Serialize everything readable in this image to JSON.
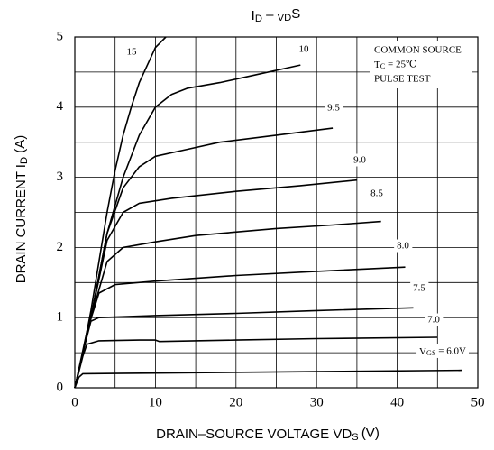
{
  "chart_data": {
    "type": "line",
    "title": "ID – VDS",
    "x_label": "DRAIN–SOURCE VOLTAGE  VDS  (V)",
    "y_label": "DRAIN CURRENT  ID  (A)",
    "annotations": [
      "COMMON SOURCE",
      "TC = 25℃",
      "PULSE TEST"
    ],
    "xlim": [
      0,
      50
    ],
    "xticks": [
      0,
      10,
      20,
      30,
      40,
      50
    ],
    "xminor": [
      5,
      15,
      25,
      35,
      45
    ],
    "ylim": [
      0,
      5
    ],
    "yticks": [
      0,
      1,
      2,
      3,
      4,
      5
    ],
    "yminor": [
      0.5,
      1.5,
      2.5,
      3.5,
      4.5
    ],
    "grid": true,
    "series": [
      {
        "name": "15",
        "color": "#000000",
        "x": [
          0,
          1,
          2,
          3,
          4,
          5,
          6,
          7,
          8,
          9,
          10,
          11.3
        ],
        "values": [
          0,
          0.5,
          1.1,
          1.8,
          2.5,
          3.1,
          3.6,
          4.0,
          4.35,
          4.6,
          4.85,
          5.0
        ]
      },
      {
        "name": "10",
        "color": "#000000",
        "x": [
          0,
          2,
          4,
          6,
          8,
          10,
          12,
          14,
          18,
          22,
          28
        ],
        "values": [
          0,
          1.0,
          2.2,
          3.0,
          3.6,
          4.0,
          4.18,
          4.27,
          4.35,
          4.45,
          4.6
        ]
      },
      {
        "name": "9.5",
        "color": "#000000",
        "x": [
          0,
          2,
          4,
          6,
          8,
          10,
          14,
          18,
          25,
          32
        ],
        "values": [
          0,
          1.0,
          2.2,
          2.85,
          3.15,
          3.3,
          3.4,
          3.5,
          3.6,
          3.7
        ]
      },
      {
        "name": "9.0",
        "color": "#000000",
        "x": [
          0,
          2,
          4,
          6,
          8,
          12,
          20,
          28,
          35
        ],
        "values": [
          0,
          1.0,
          2.1,
          2.5,
          2.63,
          2.7,
          2.8,
          2.88,
          2.96
        ]
      },
      {
        "name": "8.5",
        "color": "#000000",
        "x": [
          0,
          2,
          4,
          6,
          10,
          15,
          25,
          32,
          38
        ],
        "values": [
          0,
          1.0,
          1.8,
          2.0,
          2.08,
          2.17,
          2.27,
          2.32,
          2.37
        ]
      },
      {
        "name": "8.0",
        "color": "#000000",
        "x": [
          0,
          1.5,
          3,
          5,
          10,
          20,
          30,
          41
        ],
        "values": [
          0,
          0.8,
          1.35,
          1.47,
          1.52,
          1.6,
          1.66,
          1.72
        ]
      },
      {
        "name": "7.5",
        "color": "#000000",
        "x": [
          0,
          1,
          2,
          3,
          10,
          20,
          30,
          42
        ],
        "values": [
          0,
          0.5,
          0.95,
          1.0,
          1.03,
          1.06,
          1.1,
          1.14
        ]
      },
      {
        "name": "7.0",
        "color": "#000000",
        "x": [
          0,
          1,
          1.5,
          3,
          8,
          10,
          10.5,
          20,
          30,
          45
        ],
        "values": [
          0,
          0.45,
          0.62,
          0.67,
          0.68,
          0.68,
          0.66,
          0.68,
          0.7,
          0.72
        ]
      },
      {
        "name": "VGS = 6.0V",
        "color": "#000000",
        "x": [
          0,
          0.5,
          1,
          10,
          30,
          48
        ],
        "values": [
          0,
          0.15,
          0.2,
          0.21,
          0.23,
          0.25
        ]
      }
    ]
  }
}
